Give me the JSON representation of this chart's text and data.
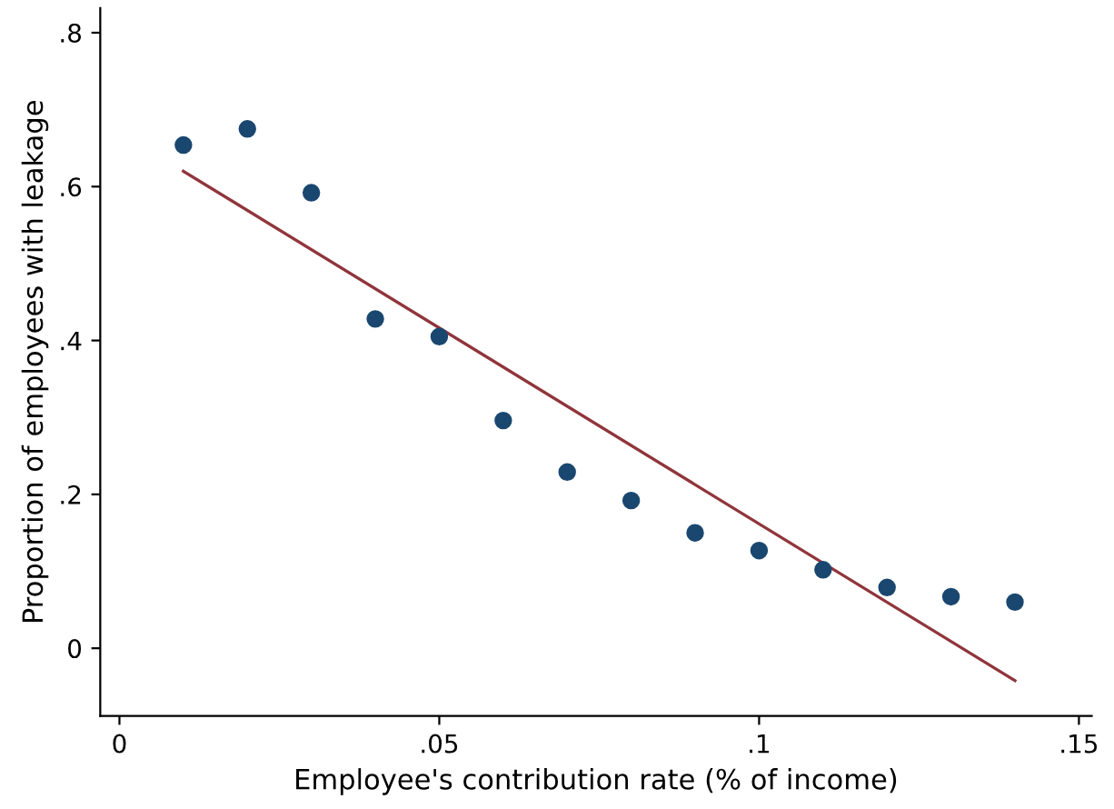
{
  "chart_data": {
    "type": "scatter",
    "xlabel": "Employee's contribution rate (% of income)",
    "ylabel": "Proportion of employees with leakage",
    "x": [
      0.01,
      0.02,
      0.03,
      0.04,
      0.05,
      0.06,
      0.07,
      0.08,
      0.09,
      0.1,
      0.11,
      0.12,
      0.13,
      0.14
    ],
    "series": [
      {
        "color": "#1a476f",
        "marker": "circle",
        "values": [
          0.654,
          0.675,
          0.592,
          0.428,
          0.405,
          0.296,
          0.229,
          0.192,
          0.15,
          0.127,
          0.102,
          0.079,
          0.067,
          0.06
        ]
      },
      {
        "type": "line",
        "color": "#90353b",
        "x": [
          0.01,
          0.14
        ],
        "values": [
          0.62,
          -0.042
        ]
      }
    ],
    "xlim": [
      -0.003,
      0.152
    ],
    "ylim": [
      -0.088,
      0.832
    ],
    "xticks": [
      {
        "value": 0,
        "label": "0"
      },
      {
        "value": 0.05,
        "label": ".05"
      },
      {
        "value": 0.1,
        "label": ".1"
      },
      {
        "value": 0.15,
        "label": ".15"
      }
    ],
    "yticks": [
      {
        "value": 0,
        "label": "0"
      },
      {
        "value": 0.2,
        "label": ".2"
      },
      {
        "value": 0.4,
        "label": ".4"
      },
      {
        "value": 0.6,
        "label": ".6"
      },
      {
        "value": 0.8,
        "label": ".8"
      }
    ],
    "grid": false,
    "legend": false
  }
}
